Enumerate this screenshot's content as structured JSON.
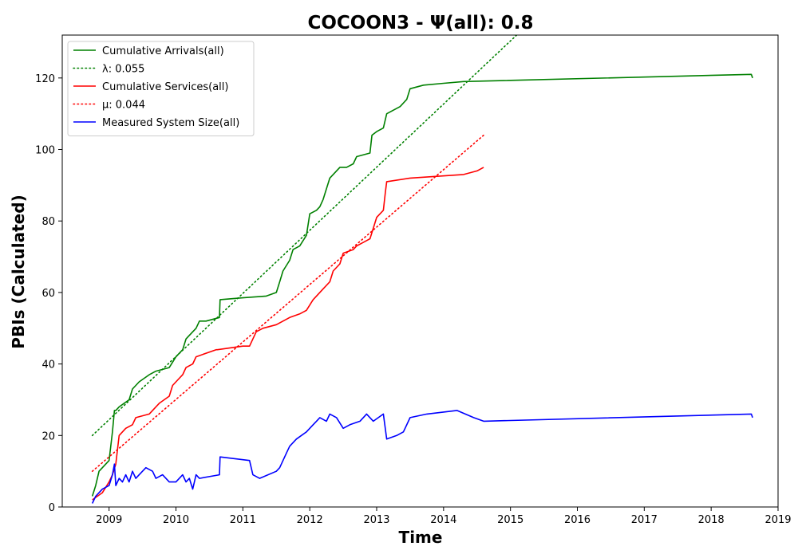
{
  "chart_data": {
    "type": "line",
    "title": "COCOON3 -  Ψ(all): 0.8",
    "xlabel": "Time",
    "ylabel": "PBIs (Calculated)",
    "xlim": [
      2008.3,
      2019.0
    ],
    "ylim": [
      0,
      132
    ],
    "xticks": [
      2009,
      2010,
      2011,
      2012,
      2013,
      2014,
      2015,
      2016,
      2017,
      2018,
      2019
    ],
    "yticks": [
      0,
      20,
      40,
      60,
      80,
      100,
      120
    ],
    "grid": false,
    "legend_position": "top-left",
    "series": [
      {
        "name": "Cumulative Arrivals(all)",
        "color": "#008000",
        "style": "solid",
        "x": [
          2008.75,
          2008.8,
          2008.85,
          2008.9,
          2009.0,
          2009.05,
          2009.08,
          2009.1,
          2009.15,
          2009.3,
          2009.35,
          2009.45,
          2009.6,
          2009.7,
          2009.9,
          2010.0,
          2010.1,
          2010.15,
          2010.2,
          2010.3,
          2010.35,
          2010.45,
          2010.65,
          2010.66,
          2011.0,
          2011.35,
          2011.5,
          2011.55,
          2011.6,
          2011.7,
          2011.75,
          2011.85,
          2011.95,
          2012.0,
          2012.1,
          2012.15,
          2012.2,
          2012.25,
          2012.3,
          2012.4,
          2012.45,
          2012.55,
          2012.65,
          2012.7,
          2012.9,
          2012.93,
          2013.0,
          2013.1,
          2013.15,
          2013.35,
          2013.45,
          2013.5,
          2013.7,
          2014.0,
          2014.3,
          2018.6,
          2018.62
        ],
        "y": [
          3,
          6,
          10,
          11,
          13,
          21,
          27,
          27,
          28,
          30,
          33,
          35,
          37,
          38,
          39,
          42,
          44,
          47,
          48,
          50,
          52,
          52,
          53,
          58,
          58.5,
          59,
          60,
          63,
          66,
          69,
          72,
          73,
          76,
          82,
          83,
          84,
          86,
          89,
          92,
          94,
          95,
          95,
          96,
          98,
          99,
          104,
          105,
          106,
          110,
          112,
          114,
          117,
          118,
          118.5,
          119,
          121,
          120
        ]
      },
      {
        "name": "λ: 0.055",
        "color": "#008000",
        "style": "dotted",
        "x": [
          2008.75,
          2015.15
        ],
        "y": [
          20,
          133
        ]
      },
      {
        "name": "Cumulative Services(all)",
        "color": "#ff0000",
        "style": "solid",
        "x": [
          2008.75,
          2008.9,
          2009.0,
          2009.05,
          2009.1,
          2009.15,
          2009.25,
          2009.35,
          2009.4,
          2009.6,
          2009.65,
          2009.75,
          2009.9,
          2009.95,
          2010.05,
          2010.1,
          2010.15,
          2010.25,
          2010.3,
          2010.6,
          2010.62,
          2011.0,
          2011.1,
          2011.15,
          2011.2,
          2011.3,
          2011.5,
          2011.7,
          2011.85,
          2011.95,
          2012.05,
          2012.1,
          2012.2,
          2012.3,
          2012.35,
          2012.45,
          2012.5,
          2012.65,
          2012.7,
          2012.9,
          2012.95,
          2013.0,
          2013.1,
          2013.13,
          2013.15,
          2013.5,
          2013.9,
          2014.3,
          2014.5,
          2014.6
        ],
        "y": [
          2,
          4,
          7,
          9,
          12,
          20,
          22,
          23,
          25,
          26,
          27,
          29,
          31,
          34,
          36,
          37,
          39,
          40,
          42,
          44,
          44,
          45,
          45,
          47,
          49,
          50,
          51,
          53,
          54,
          55,
          58,
          59,
          61,
          63,
          66,
          68,
          71,
          72,
          73,
          75,
          78,
          81,
          83,
          88,
          91,
          92,
          92.5,
          93,
          94,
          95
        ]
      },
      {
        "name": "μ: 0.044",
        "color": "#ff0000",
        "style": "dotted",
        "x": [
          2008.75,
          2014.6
        ],
        "y": [
          10,
          104
        ]
      },
      {
        "name": "Measured System Size(all)",
        "color": "#0000ff",
        "style": "solid",
        "x": [
          2008.75,
          2008.8,
          2008.9,
          2009.0,
          2009.05,
          2009.08,
          2009.1,
          2009.15,
          2009.2,
          2009.25,
          2009.3,
          2009.35,
          2009.4,
          2009.45,
          2009.55,
          2009.65,
          2009.7,
          2009.8,
          2009.9,
          2010.0,
          2010.05,
          2010.1,
          2010.15,
          2010.2,
          2010.25,
          2010.3,
          2010.35,
          2010.65,
          2010.66,
          2011.1,
          2011.15,
          2011.25,
          2011.5,
          2011.55,
          2011.65,
          2011.7,
          2011.8,
          2011.95,
          2012.05,
          2012.1,
          2012.15,
          2012.25,
          2012.3,
          2012.4,
          2012.5,
          2012.6,
          2012.75,
          2012.85,
          2012.9,
          2012.95,
          2013.1,
          2013.15,
          2013.3,
          2013.4,
          2013.5,
          2013.75,
          2014.2,
          2014.45,
          2014.6,
          2018.6,
          2018.62
        ],
        "y": [
          1,
          3,
          5,
          6,
          9,
          12,
          6,
          8,
          7,
          9,
          7,
          10,
          8,
          9,
          11,
          10,
          8,
          9,
          7,
          7,
          8,
          9,
          7,
          8,
          5,
          9,
          8,
          9,
          14,
          13,
          9,
          8,
          10,
          11,
          15,
          17,
          19,
          21,
          23,
          24,
          25,
          24,
          26,
          25,
          22,
          23,
          24,
          26,
          25,
          24,
          26,
          19,
          20,
          21,
          25,
          26,
          27,
          25,
          24,
          26,
          25
        ]
      }
    ]
  }
}
